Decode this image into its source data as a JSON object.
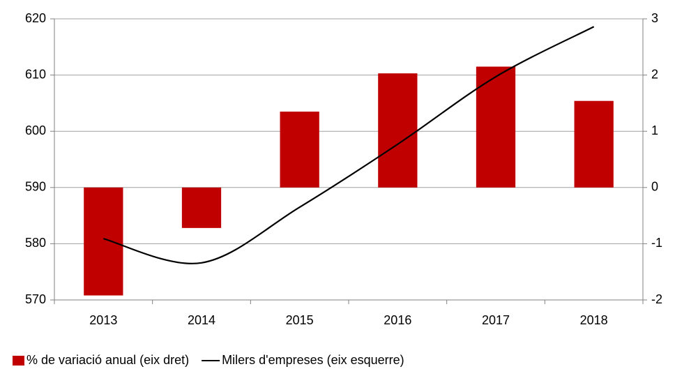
{
  "chart_data": {
    "type": "bar",
    "categories": [
      "2013",
      "2014",
      "2015",
      "2016",
      "2017",
      "2018"
    ],
    "series": [
      {
        "name": "% de variació anual (eix dret)",
        "type": "bar",
        "axis": "y2",
        "color": "#c00000",
        "values": [
          -1.92,
          -0.72,
          1.35,
          2.03,
          2.15,
          1.54
        ]
      },
      {
        "name": "Milers d'empreses (eix esquerre)",
        "type": "line",
        "axis": "y",
        "color": "#000000",
        "values": [
          580.9,
          576.6,
          586.5,
          597.7,
          609.7,
          618.6
        ]
      }
    ],
    "ylim": [
      570,
      620
    ],
    "yticks": [
      570,
      580,
      590,
      600,
      610,
      620
    ],
    "y2lim": [
      -2,
      3
    ],
    "y2ticks": [
      -2,
      -1,
      0,
      1,
      2,
      3
    ],
    "grid": true,
    "legend": "bottom"
  }
}
